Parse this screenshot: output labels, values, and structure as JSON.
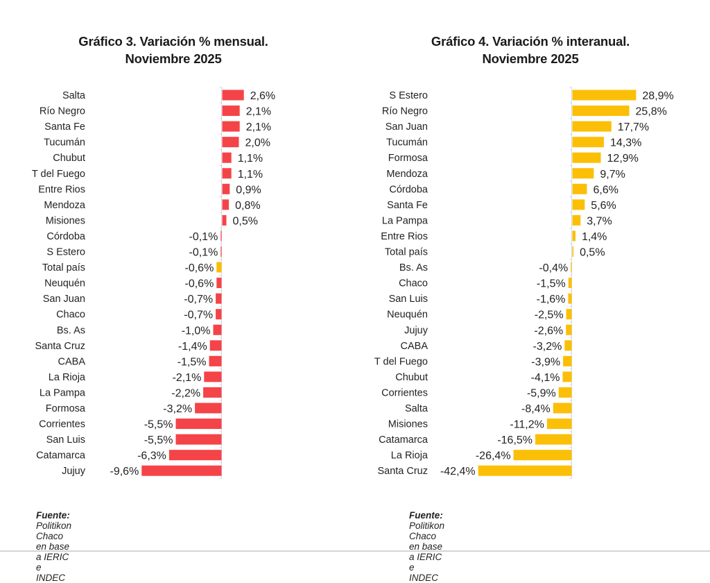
{
  "colors": {
    "negative_bar": "#f44448",
    "positive_bar": "#f44448",
    "highlight_bar": "#fbbc05",
    "yellow_bar": "#fcbf07",
    "axis": "#cfd6e4"
  },
  "chart_data": [
    {
      "type": "bar",
      "orientation": "horizontal",
      "title_line1": "Gráfico 3. Variación % mensual.",
      "title_line2": "Noviembre 2025",
      "xlabel": "",
      "ylabel": "",
      "xlim": [
        -9.6,
        2.6
      ],
      "grid": false,
      "highlight_category": "Total país",
      "categories": [
        "Salta",
        "Río Negro",
        "Santa Fe",
        "Tucumán",
        "Chubut",
        "T del Fuego",
        "Entre Rios",
        "Mendoza",
        "Misiones",
        "Córdoba",
        "S Estero",
        "Total país",
        "Neuquén",
        "San Juan",
        "Chaco",
        "Bs. As",
        "Santa Cruz",
        "CABA",
        "La Rioja",
        "La Pampa",
        "Formosa",
        "Corrientes",
        "San Luis",
        "Catamarca",
        "Jujuy"
      ],
      "values": [
        2.6,
        2.1,
        2.1,
        2.0,
        1.1,
        1.1,
        0.9,
        0.8,
        0.5,
        -0.1,
        -0.1,
        -0.6,
        -0.6,
        -0.7,
        -0.7,
        -1.0,
        -1.4,
        -1.5,
        -2.1,
        -2.2,
        -3.2,
        -5.5,
        -5.5,
        -6.3,
        -9.6
      ],
      "value_labels": [
        "2,6%",
        "2,1%",
        "2,1%",
        "2,0%",
        "1,1%",
        "1,1%",
        "0,9%",
        "0,8%",
        "0,5%",
        "-0,1%",
        "-0,1%",
        "-0,6%",
        "-0,6%",
        "-0,7%",
        "-0,7%",
        "-1,0%",
        "-1,4%",
        "-1,5%",
        "-2,1%",
        "-2,2%",
        "-3,2%",
        "-5,5%",
        "-5,5%",
        "-6,3%",
        "-9,6%"
      ],
      "source_bold": "Fuente:",
      "source_text": " Politikon Chaco en base a IERIC e INDEC"
    },
    {
      "type": "bar",
      "orientation": "horizontal",
      "title_line1": "Gráfico 4. Variación % interanual.",
      "title_line2": "Noviembre 2025",
      "xlabel": "",
      "ylabel": "",
      "xlim": [
        -42.4,
        28.9
      ],
      "grid": false,
      "highlight_category": "Total país",
      "categories": [
        "S Estero",
        "Río Negro",
        "San Juan",
        "Tucumán",
        "Formosa",
        "Mendoza",
        "Córdoba",
        "Santa Fe",
        "La Pampa",
        "Entre Rios",
        "Total país",
        "Bs. As",
        "Chaco",
        "San Luis",
        "Neuquén",
        "Jujuy",
        "CABA",
        "T del Fuego",
        "Chubut",
        "Corrientes",
        "Salta",
        "Misiones",
        "Catamarca",
        "La Rioja",
        "Santa Cruz"
      ],
      "values": [
        28.9,
        25.8,
        17.7,
        14.3,
        12.9,
        9.7,
        6.6,
        5.6,
        3.7,
        1.4,
        0.5,
        -0.4,
        -1.5,
        -1.6,
        -2.5,
        -2.6,
        -3.2,
        -3.9,
        -4.1,
        -5.9,
        -8.4,
        -11.2,
        -16.5,
        -26.4,
        -42.4
      ],
      "value_labels": [
        "28,9%",
        "25,8%",
        "17,7%",
        "14,3%",
        "12,9%",
        "9,7%",
        "6,6%",
        "5,6%",
        "3,7%",
        "1,4%",
        "0,5%",
        "-0,4%",
        "-1,5%",
        "-1,6%",
        "-2,5%",
        "-2,6%",
        "-3,2%",
        "-3,9%",
        "-4,1%",
        "-5,9%",
        "-8,4%",
        "-11,2%",
        "-16,5%",
        "-26,4%",
        "-42,4%"
      ],
      "source_bold": "Fuente:",
      "source_text": " Politikon Chaco en base a IERIC e INDEC"
    }
  ]
}
